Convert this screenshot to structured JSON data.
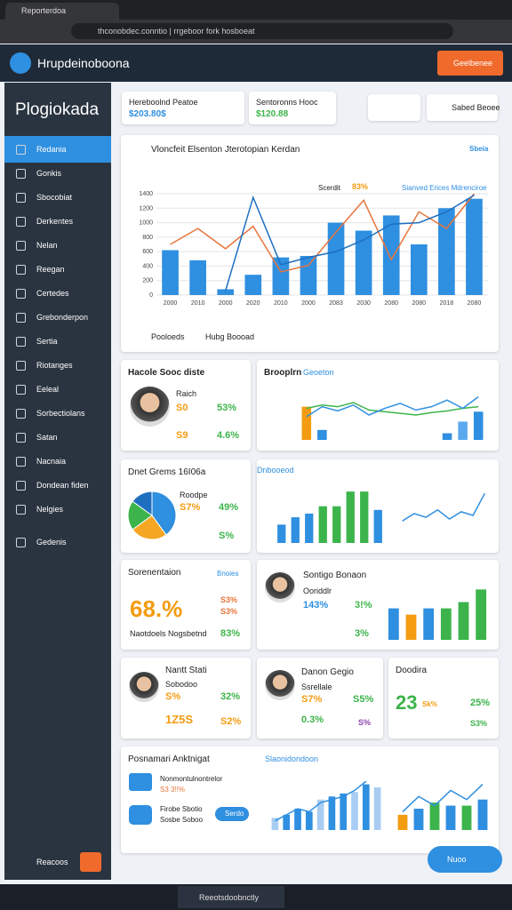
{
  "browser": {
    "tab": "Reporterdoa",
    "url": "thconobdec.conntio | rrgeboor fork hosboeat"
  },
  "header": {
    "title": "Hrupdeinoboona",
    "button": "Geelbenee"
  },
  "sidebar": {
    "title": "Plogiokada",
    "items": [
      "Redania",
      "Gonkis",
      "Sbocobiat",
      "Derkentes",
      "Nelan",
      "Reegan",
      "Certedes",
      "Grebonderpon",
      "Sertia",
      "Riotanges",
      "Eeleal",
      "Sorbectiolans",
      "Satan",
      "Nacnaia",
      "Dondean fiden",
      "Nelgies",
      "Gedenis"
    ],
    "user": "Reacoos"
  },
  "toolbar": {
    "cards": [
      {
        "label": "Hereboolnd Peatoe",
        "value": "$203.80$"
      },
      {
        "label": "Sentoronns Hooc",
        "value": "$120.88"
      }
    ],
    "button": "Sabed Beoee"
  },
  "main": {
    "title": "Vloncfeit Elsenton Jterotopian Kerdan",
    "button": "Sbeia",
    "legend": [
      "Scerdit",
      "83%",
      "Sianved Erices Mdrenciroe"
    ],
    "footer_left": "Pooloeds",
    "footer_right": "Hubg Boooad",
    "chart_data": {
      "type": "combo",
      "categories": [
        "2000",
        "2010",
        "2000",
        "2020",
        "2010",
        "2000",
        "2083",
        "2030",
        "2080",
        "2080",
        "2018",
        "2080"
      ],
      "ylim": [
        0,
        1400
      ],
      "yticks": [
        0,
        200,
        400,
        600,
        800,
        1000,
        1200,
        1400
      ],
      "series": [
        {
          "name": "Sianved Erices Mdrenciroe",
          "type": "bar",
          "color": "#2f8fe0",
          "values": [
            620,
            480,
            80,
            280,
            520,
            540,
            1000,
            890,
            1100,
            700,
            1200,
            1330
          ]
        },
        {
          "name": "Scerdit",
          "type": "line",
          "color": "#e8743b",
          "values": [
            700,
            920,
            640,
            950,
            320,
            410,
            870,
            1310,
            490,
            1150,
            920,
            1400
          ]
        },
        {
          "type": "line",
          "color": "#1f6fc0",
          "values": [
            null,
            null,
            60,
            1350,
            420,
            520,
            600,
            760,
            980,
            1000,
            1150,
            1380
          ]
        }
      ]
    }
  },
  "card_a": {
    "title": "Hacole Sooc diste",
    "name": "Raich",
    "labels": [
      "S0",
      "S9"
    ],
    "values": [
      "53%",
      "4.6%"
    ]
  },
  "card_b": {
    "title": "Brooplrn",
    "link": "Geoeton",
    "chart_data": {
      "type": "combo",
      "ylim": [
        0,
        60
      ],
      "series": [
        {
          "type": "bar",
          "colors": [
            "#f39c12",
            "#2f8fe0",
            "#2f8fe0",
            "#2f8fe0",
            "#2f8fe0",
            "#2f8fe0",
            "#2f8fe0",
            "#2f8fe0",
            "#2f8fe0",
            "#2f8fe0",
            "#5aa9ee",
            "#2f8fe0"
          ],
          "values": [
            40,
            12,
            null,
            null,
            null,
            null,
            null,
            null,
            null,
            8,
            22,
            34
          ]
        },
        {
          "type": "line",
          "color": "#3cb44b",
          "values": [
            38,
            42,
            40,
            45,
            36,
            34,
            32,
            30,
            33,
            35,
            38,
            40
          ]
        },
        {
          "type": "line",
          "color": "#2f8fe0",
          "values": [
            28,
            40,
            35,
            42,
            30,
            38,
            44,
            36,
            40,
            48,
            38,
            52
          ]
        }
      ]
    }
  },
  "card_c": {
    "title": "Dnet Grems 16I06a",
    "label": "Roodpe",
    "values": [
      "S7%",
      "49%",
      "S%"
    ],
    "chart_data": {
      "type": "pie",
      "values": [
        40,
        25,
        20,
        15
      ],
      "colors": [
        "#2f8fe0",
        "#f5a623",
        "#3cb44b",
        "#1f6fc0"
      ]
    }
  },
  "card_d": {
    "title": "Dnbooeod",
    "charts": [
      {
        "type": "combo",
        "ylim": [
          0,
          30
        ],
        "series": [
          {
            "type": "bar",
            "colors": [
              "#2f8fe0",
              "#2f8fe0",
              "#2f8fe0",
              "#3cb44b",
              "#3cb44b",
              "#3cb44b",
              "#3cb44b",
              "#2f8fe0"
            ],
            "values": [
              10,
              14,
              16,
              20,
              20,
              28,
              28,
              18
            ]
          }
        ]
      },
      {
        "type": "combo",
        "ylim": [
          0,
          30
        ],
        "series": [
          {
            "type": "line",
            "color": "#2f8fe0",
            "values": [
              12,
              16,
              14,
              18,
              13,
              17,
              15,
              27
            ]
          }
        ]
      }
    ]
  },
  "card_e": {
    "title": "Sorenentaion",
    "button": "Bnoies",
    "big": "68.%",
    "values": [
      "S3%",
      "S3%"
    ],
    "footer": "Naotdoels Nogsbetnd",
    "footer_value": "83%"
  },
  "card_f": {
    "title": "Sontigo Bonaon",
    "label": "Ooriddlr",
    "values": [
      "143%",
      "3!%",
      "3%"
    ],
    "chart_data": {
      "type": "combo",
      "ylim": [
        0,
        35
      ],
      "series": [
        {
          "type": "bar",
          "colors": [
            "#2f8fe0",
            "#f39c12",
            "#2f8fe0",
            "#3cb44b",
            "#3cb44b",
            "#3cb44b"
          ],
          "values": [
            20,
            16,
            20,
            20,
            24,
            32
          ]
        }
      ]
    }
  },
  "card_g": {
    "title": "Nantt Stati",
    "label": "Sobodoo",
    "values": [
      "S%",
      "32%",
      "1Z5S",
      "S2%"
    ]
  },
  "card_h": {
    "title": "Danon Gegio",
    "label": "Ssrellale",
    "values": [
      "S7%",
      "S5%",
      "0.3%",
      "S%"
    ]
  },
  "card_i": {
    "title": "Doodira",
    "big": "23",
    "values": [
      "Sk%",
      "25%",
      "S3%"
    ]
  },
  "card_j": {
    "title": "Posnamari Anktnigat",
    "link": "Slaonidondoon",
    "rows": [
      "Nonmontulnontrelor",
      "S3 3!!%",
      "Firobe Sbotio",
      "Sosbe Soboo"
    ],
    "button": "Serdo",
    "charts": [
      {
        "type": "combo",
        "ylim": [
          0,
          35
        ],
        "series": [
          {
            "type": "bar",
            "colors": [
              "#a9cdf2",
              "#2f8fe0",
              "#2f8fe0",
              "#2f8fe0",
              "#a9cdf2",
              "#2f8fe0",
              "#2f8fe0",
              "#a9cdf2",
              "#2f8fe0",
              "#a9cdf2"
            ],
            "values": [
              8,
              10,
              14,
              12,
              20,
              22,
              24,
              25,
              30,
              28
            ]
          },
          {
            "type": "line",
            "color": "#2f8fe0",
            "values": [
              6,
              10,
              14,
              12,
              18,
              20,
              22,
              26,
              32,
              null
            ]
          }
        ]
      },
      {
        "type": "combo",
        "ylim": [
          0,
          35
        ],
        "series": [
          {
            "type": "bar",
            "colors": [
              "#f39c12",
              "#2f8fe0",
              "#3cb44b",
              "#2f8fe0",
              "#3cb44b",
              "#2f8fe0"
            ],
            "values": [
              10,
              14,
              18,
              16,
              16,
              20
            ]
          },
          {
            "type": "line",
            "color": "#2f8fe0",
            "values": [
              12,
              22,
              16,
              26,
              20,
              30
            ]
          }
        ]
      }
    ]
  },
  "chat": "Nuoo",
  "taskbar": {
    "app": "Reeotsdoobnctly"
  }
}
